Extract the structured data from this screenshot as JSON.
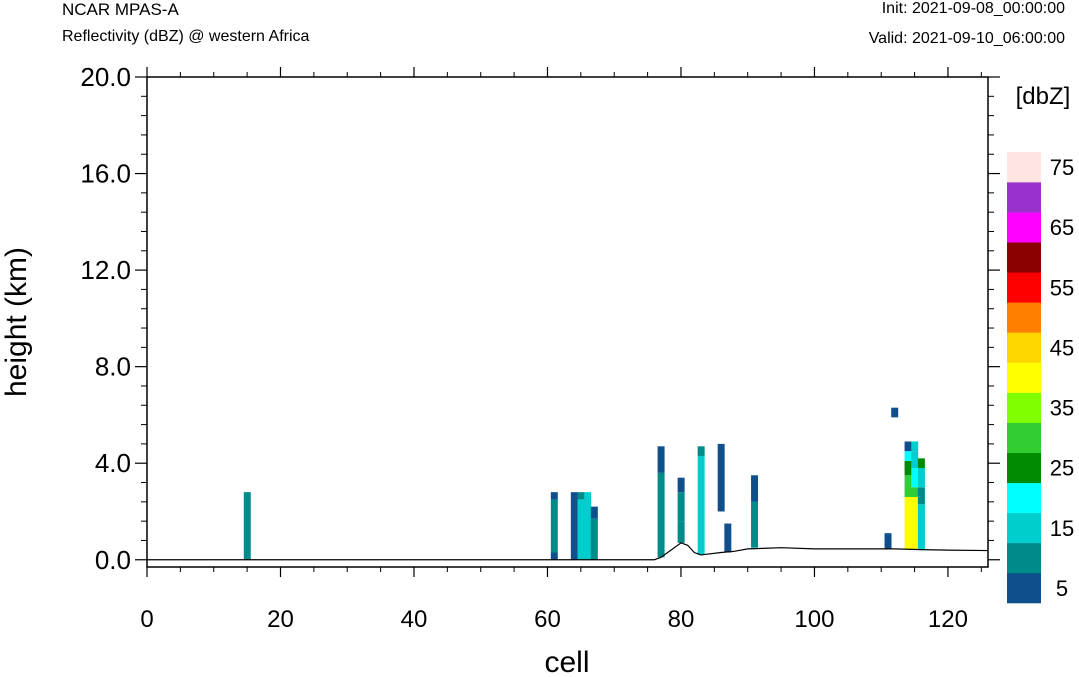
{
  "header": {
    "model": "NCAR MPAS-A",
    "field": "Reflectivity (dBZ) @ western Africa",
    "init": "Init: 2021-09-08_00:00:00",
    "valid": "Valid: 2021-09-10_06:00:00"
  },
  "chart_data": {
    "type": "heatmap",
    "xlabel": "cell",
    "ylabel": "height (km)",
    "xlim": [
      0,
      126
    ],
    "ylim": [
      -0.3,
      20.0
    ],
    "xticks": [
      0,
      20,
      40,
      60,
      80,
      100,
      120
    ],
    "xtick_labels": [
      "0",
      "20",
      "40",
      "60",
      "80",
      "100",
      "120"
    ],
    "yticks": [
      0,
      4,
      8,
      12,
      16,
      20
    ],
    "ytick_labels": [
      "0.0",
      "4.0",
      "8.0",
      "12.0",
      "16.0",
      "20.0"
    ],
    "colorbar": {
      "title": "[dbZ]",
      "levels": [
        5,
        10,
        15,
        20,
        25,
        30,
        35,
        40,
        45,
        50,
        55,
        60,
        65,
        70,
        75
      ],
      "labels": [
        "5",
        "15",
        "25",
        "35",
        "45",
        "55",
        "65",
        "75"
      ],
      "colors": [
        "#0f4f8b",
        "#008b8b",
        "#00cdcd",
        "#00ffff",
        "#008b00",
        "#32cd32",
        "#7fff00",
        "#ffff00",
        "#ffd700",
        "#ff7f00",
        "#ff0000",
        "#8b0000",
        "#ff00ff",
        "#9932cc",
        "#ffe4e1"
      ]
    },
    "terrain": [
      [
        0,
        0
      ],
      [
        76,
        0
      ],
      [
        77,
        0.1
      ],
      [
        80,
        0.7
      ],
      [
        81,
        0.6
      ],
      [
        82,
        0.3
      ],
      [
        83,
        0.2
      ],
      [
        86,
        0.3
      ],
      [
        88,
        0.35
      ],
      [
        90,
        0.45
      ],
      [
        95,
        0.5
      ],
      [
        100,
        0.45
      ],
      [
        105,
        0.45
      ],
      [
        112,
        0.45
      ],
      [
        116,
        0.42
      ],
      [
        120,
        0.4
      ],
      [
        126,
        0.38
      ]
    ],
    "cells": [
      {
        "x": 15,
        "segments": [
          [
            0,
            2.8,
            10
          ]
        ]
      },
      {
        "x": 61,
        "segments": [
          [
            0,
            0.3,
            5
          ],
          [
            0.3,
            2.5,
            10
          ],
          [
            2.5,
            2.8,
            5
          ]
        ]
      },
      {
        "x": 64,
        "segments": [
          [
            0,
            2.8,
            5
          ]
        ]
      },
      {
        "x": 65,
        "segments": [
          [
            0,
            2.5,
            15
          ],
          [
            2.5,
            2.8,
            10
          ]
        ]
      },
      {
        "x": 66,
        "segments": [
          [
            0,
            2.8,
            15
          ]
        ]
      },
      {
        "x": 67,
        "segments": [
          [
            0,
            1.7,
            10
          ],
          [
            1.7,
            2.2,
            5
          ]
        ]
      },
      {
        "x": 77,
        "segments": [
          [
            0.1,
            3.6,
            10
          ],
          [
            3.6,
            4.7,
            5
          ]
        ]
      },
      {
        "x": 80,
        "segments": [
          [
            0.7,
            1.6,
            10
          ],
          [
            1.6,
            2.8,
            10
          ],
          [
            2.8,
            3.4,
            5
          ]
        ]
      },
      {
        "x": 83,
        "segments": [
          [
            0.2,
            4.3,
            15
          ],
          [
            4.3,
            4.7,
            10
          ]
        ]
      },
      {
        "x": 86,
        "segments": [
          [
            2.0,
            4.8,
            5
          ]
        ]
      },
      {
        "x": 87,
        "segments": [
          [
            0.3,
            1.5,
            5
          ]
        ]
      },
      {
        "x": 91,
        "segments": [
          [
            0.5,
            2.4,
            10
          ],
          [
            2.4,
            3.5,
            5
          ]
        ]
      },
      {
        "x": 111,
        "segments": [
          [
            0.45,
            1.1,
            5
          ]
        ]
      },
      {
        "x": 112,
        "segments": [
          [
            5.9,
            6.3,
            5
          ]
        ]
      },
      {
        "x": 114,
        "segments": [
          [
            0.45,
            2.6,
            40
          ],
          [
            2.6,
            3.5,
            30
          ],
          [
            3.5,
            4.1,
            25
          ],
          [
            4.1,
            4.5,
            20
          ],
          [
            4.5,
            4.9,
            5
          ]
        ]
      },
      {
        "x": 115,
        "segments": [
          [
            0.45,
            2.6,
            40
          ],
          [
            2.6,
            3.0,
            30
          ],
          [
            3.0,
            3.8,
            20
          ],
          [
            3.8,
            4.5,
            15
          ],
          [
            4.5,
            4.9,
            15
          ]
        ]
      },
      {
        "x": 116,
        "segments": [
          [
            0.45,
            2.3,
            15
          ],
          [
            2.3,
            3.0,
            10
          ],
          [
            3.0,
            3.8,
            15
          ],
          [
            3.8,
            4.2,
            25
          ]
        ]
      }
    ]
  }
}
